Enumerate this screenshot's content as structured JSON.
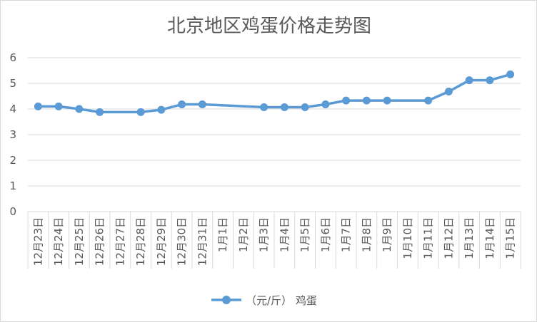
{
  "chart_data": {
    "type": "line",
    "title": "北京地区鸡蛋价格走势图",
    "xlabel": "",
    "ylabel": "",
    "ylim": [
      0,
      6
    ],
    "yticks": [
      "0",
      "1",
      "2",
      "3",
      "4",
      "5",
      "6"
    ],
    "grid": "horizontal",
    "legend": "bottom",
    "series_color": "#5b9bd5",
    "grid_color": "#d9d9d9",
    "categories": [
      "12月23日",
      "12月24日",
      "12月25日",
      "12月26日",
      "12月27日",
      "12月28日",
      "12月29日",
      "12月30日",
      "12月31日",
      "1月1日",
      "1月2日",
      "1月3日",
      "1月4日",
      "1月5日",
      "1月6日",
      "1月7日",
      "1月8日",
      "1月9日",
      "1月10日",
      "1月11日",
      "1月12日",
      "1月13日",
      "1月14日",
      "1月15日"
    ],
    "series": [
      {
        "name": "（元/斤） 鸡蛋",
        "values": [
          4.1,
          4.1,
          4.0,
          3.88,
          null,
          3.88,
          3.97,
          4.18,
          4.18,
          null,
          null,
          4.07,
          4.07,
          4.07,
          4.18,
          4.33,
          4.33,
          4.33,
          null,
          4.33,
          4.68,
          5.12,
          5.12,
          5.35
        ]
      }
    ]
  }
}
